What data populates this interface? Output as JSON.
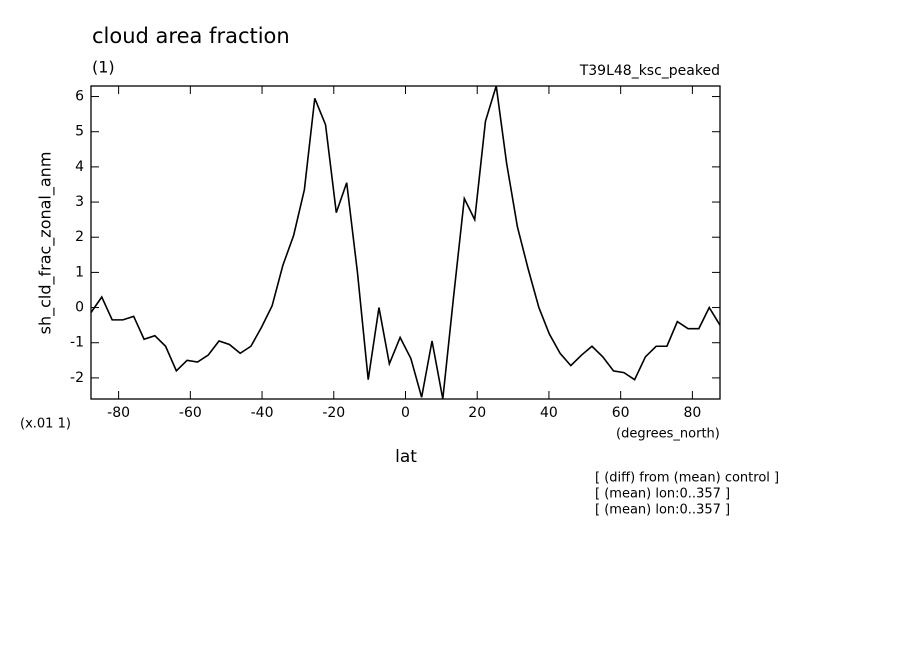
{
  "chart_data": {
    "type": "line",
    "title": "cloud area fraction",
    "units": "(1)",
    "run": "T39L48_ksc_peaked",
    "y_label": "sh_cld_frac_zonal_anm",
    "scale_note": "(x.01 1)",
    "x_unit": "(degrees_north)",
    "x_label": "lat",
    "notes": [
      "[ (diff) from (mean) control ]",
      "[ (mean) lon:0..357 ]",
      "[ (mean) lon:0..357 ]"
    ],
    "x": [
      -87.7,
      -84.7,
      -81.8,
      -78.8,
      -75.8,
      -72.9,
      -69.9,
      -66.9,
      -63.9,
      -60.9,
      -58.0,
      -55.0,
      -52.0,
      -49.1,
      -46.1,
      -43.1,
      -40.1,
      -37.2,
      -34.2,
      -31.2,
      -28.2,
      -25.3,
      -22.3,
      -19.3,
      -16.4,
      -13.4,
      -10.4,
      -7.4,
      -4.5,
      -1.5,
      1.5,
      4.5,
      7.4,
      10.4,
      13.4,
      16.4,
      19.3,
      22.3,
      25.3,
      28.2,
      31.2,
      34.2,
      37.2,
      40.1,
      43.1,
      46.1,
      49.1,
      52.0,
      55.0,
      58.0,
      60.9,
      63.9,
      66.9,
      69.9,
      72.9,
      75.8,
      78.8,
      81.8,
      84.7,
      87.7
    ],
    "series": [
      {
        "color": "#000000",
        "values": [
          -0.14,
          0.3,
          -0.35,
          -0.35,
          -0.25,
          -0.9,
          -0.8,
          -1.1,
          -1.8,
          -1.5,
          -1.55,
          -1.35,
          -0.95,
          -1.05,
          -1.3,
          -1.1,
          -0.55,
          0.05,
          1.2,
          2.05,
          3.35,
          5.95,
          5.2,
          2.7,
          3.55,
          1.0,
          -2.05,
          0,
          -1.6,
          -0.85,
          -1.45,
          -2.55,
          -0.95,
          -2.6,
          0.3,
          3.1,
          2.5,
          5.3,
          6.3,
          4.1,
          2.3,
          1.1,
          0,
          -0.75,
          -1.3,
          -1.65,
          -1.35,
          -1.1,
          -1.4,
          -1.8,
          -1.85,
          -2.05,
          -1.4,
          -1.1,
          -1.1,
          -0.4,
          -0.6,
          -0.6,
          0,
          -0.5
        ]
      }
    ],
    "xlim": [
      -87.7,
      87.7
    ],
    "xticks": [
      -80,
      -60,
      -40,
      -20,
      0,
      20,
      40,
      60,
      80
    ],
    "ylim": [
      -2.6,
      6.3
    ],
    "yticks": [
      -2,
      -1,
      0,
      1,
      2,
      3,
      4,
      5,
      6
    ]
  }
}
